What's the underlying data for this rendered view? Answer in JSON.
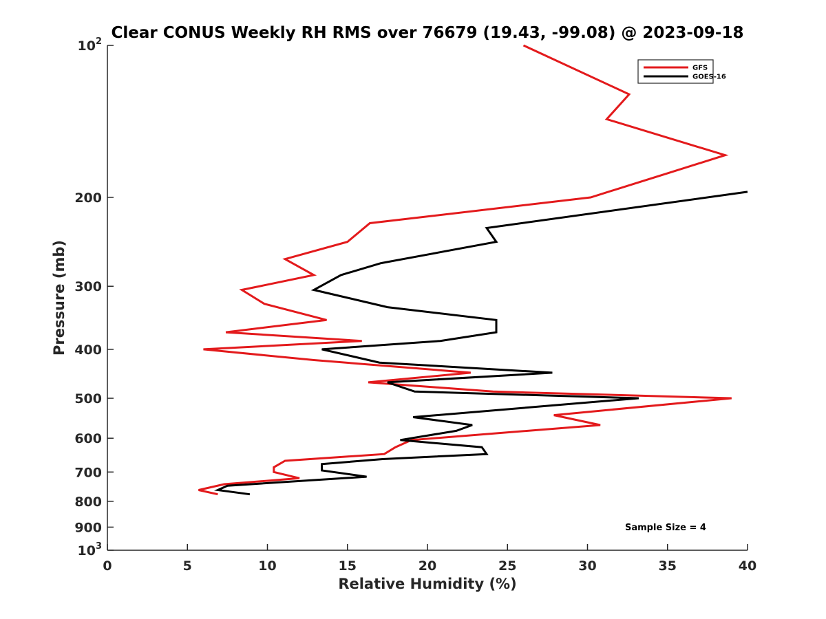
{
  "chart_data": {
    "type": "line",
    "title": "Clear CONUS Weekly RH RMS over 76679 (19.43, -99.08) @ 2023-09-18",
    "xlabel": "Relative Humidity (%)",
    "ylabel": "Pressure (mb)",
    "xlim": [
      0,
      40
    ],
    "ylim": [
      100,
      1000
    ],
    "y_scale": "log",
    "y_inverted": true,
    "grid": false,
    "legend_position": "top-right",
    "x_ticks": [
      0,
      5,
      10,
      15,
      20,
      25,
      30,
      35,
      40
    ],
    "y_ticks": [
      {
        "value": 100,
        "base": "10",
        "exp": "2"
      },
      {
        "value": 200,
        "label": "200"
      },
      {
        "value": 300,
        "label": "300"
      },
      {
        "value": 400,
        "label": "400"
      },
      {
        "value": 500,
        "label": "500"
      },
      {
        "value": 600,
        "label": "600"
      },
      {
        "value": 700,
        "label": "700"
      },
      {
        "value": 800,
        "label": "800"
      },
      {
        "value": 900,
        "label": "900"
      },
      {
        "value": 1000,
        "base": "10",
        "exp": "3"
      }
    ],
    "annotation": "Sample Size = 4",
    "series": [
      {
        "name": "GFS",
        "color": "#e31a1c",
        "points": [
          [
            26.0,
            100
          ],
          [
            32.6,
            125
          ],
          [
            31.2,
            140
          ],
          [
            38.6,
            165
          ],
          [
            34.8,
            180
          ],
          [
            30.2,
            200
          ],
          [
            16.4,
            225
          ],
          [
            15.0,
            245
          ],
          [
            11.1,
            265
          ],
          [
            12.9,
            285
          ],
          [
            8.4,
            305
          ],
          [
            9.8,
            325
          ],
          [
            13.7,
            350
          ],
          [
            7.4,
            370
          ],
          [
            15.9,
            385
          ],
          [
            6.0,
            400
          ],
          [
            12.9,
            420
          ],
          [
            22.7,
            445
          ],
          [
            16.3,
            465
          ],
          [
            24.1,
            485
          ],
          [
            39.0,
            500
          ],
          [
            27.9,
            540
          ],
          [
            30.8,
            565
          ],
          [
            19.0,
            605
          ],
          [
            18.0,
            625
          ],
          [
            17.3,
            645
          ],
          [
            11.1,
            665
          ],
          [
            10.4,
            685
          ],
          [
            10.4,
            700
          ],
          [
            12.0,
            720
          ],
          [
            7.3,
            740
          ],
          [
            5.7,
            760
          ],
          [
            6.9,
            775
          ]
        ]
      },
      {
        "name": "GOES-16",
        "color": "#000000",
        "points": [
          [
            40.0,
            195
          ],
          [
            23.7,
            230
          ],
          [
            24.3,
            245
          ],
          [
            17.1,
            270
          ],
          [
            14.6,
            285
          ],
          [
            12.9,
            305
          ],
          [
            17.5,
            330
          ],
          [
            24.3,
            350
          ],
          [
            24.3,
            370
          ],
          [
            20.8,
            385
          ],
          [
            13.4,
            400
          ],
          [
            17.0,
            425
          ],
          [
            27.8,
            445
          ],
          [
            17.5,
            465
          ],
          [
            19.2,
            485
          ],
          [
            33.2,
            500
          ],
          [
            19.1,
            545
          ],
          [
            22.8,
            565
          ],
          [
            21.8,
            580
          ],
          [
            18.3,
            605
          ],
          [
            23.4,
            625
          ],
          [
            23.7,
            645
          ],
          [
            17.2,
            660
          ],
          [
            13.4,
            675
          ],
          [
            13.4,
            695
          ],
          [
            16.2,
            715
          ],
          [
            7.5,
            745
          ],
          [
            6.9,
            760
          ],
          [
            8.9,
            775
          ]
        ]
      }
    ]
  }
}
